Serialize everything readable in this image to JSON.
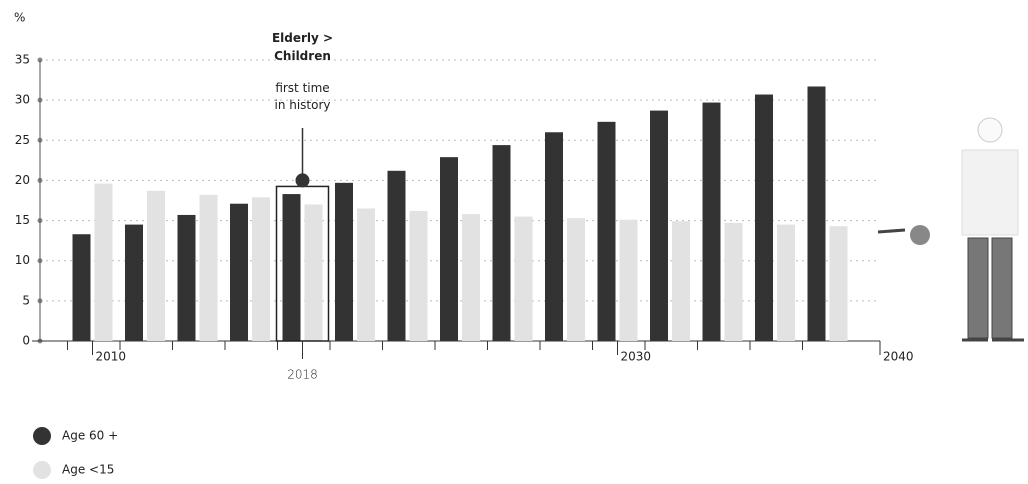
{
  "chart_data": {
    "type": "bar",
    "y_unit": "%",
    "x": [
      2010,
      2012,
      2014,
      2016,
      2018,
      2020,
      2022,
      2024,
      2026,
      2028,
      2030,
      2032,
      2034,
      2036,
      2038
    ],
    "series": [
      {
        "name": "Age 60 +",
        "color": "#333333",
        "values": [
          13.3,
          14.5,
          15.7,
          17.1,
          18.3,
          19.7,
          21.2,
          22.9,
          24.4,
          26.0,
          27.3,
          28.7,
          29.7,
          30.7,
          31.7
        ]
      },
      {
        "name": "Age <15",
        "color": "#e2e2e2",
        "values": [
          19.6,
          18.7,
          18.2,
          17.9,
          17.0,
          16.5,
          16.2,
          15.8,
          15.5,
          15.3,
          15.1,
          14.9,
          14.7,
          14.5,
          14.3
        ]
      }
    ],
    "xlim": [
      2008,
      2040
    ],
    "xticks": [
      2010,
      2030,
      2040
    ],
    "ylim": [
      0,
      35
    ],
    "yticks": [
      0,
      5,
      10,
      15,
      20,
      25,
      30,
      35
    ],
    "grid": true,
    "annotation": {
      "x": 2018,
      "y": 20,
      "title": "Elderly > Children",
      "text": "first time in history"
    }
  }
}
